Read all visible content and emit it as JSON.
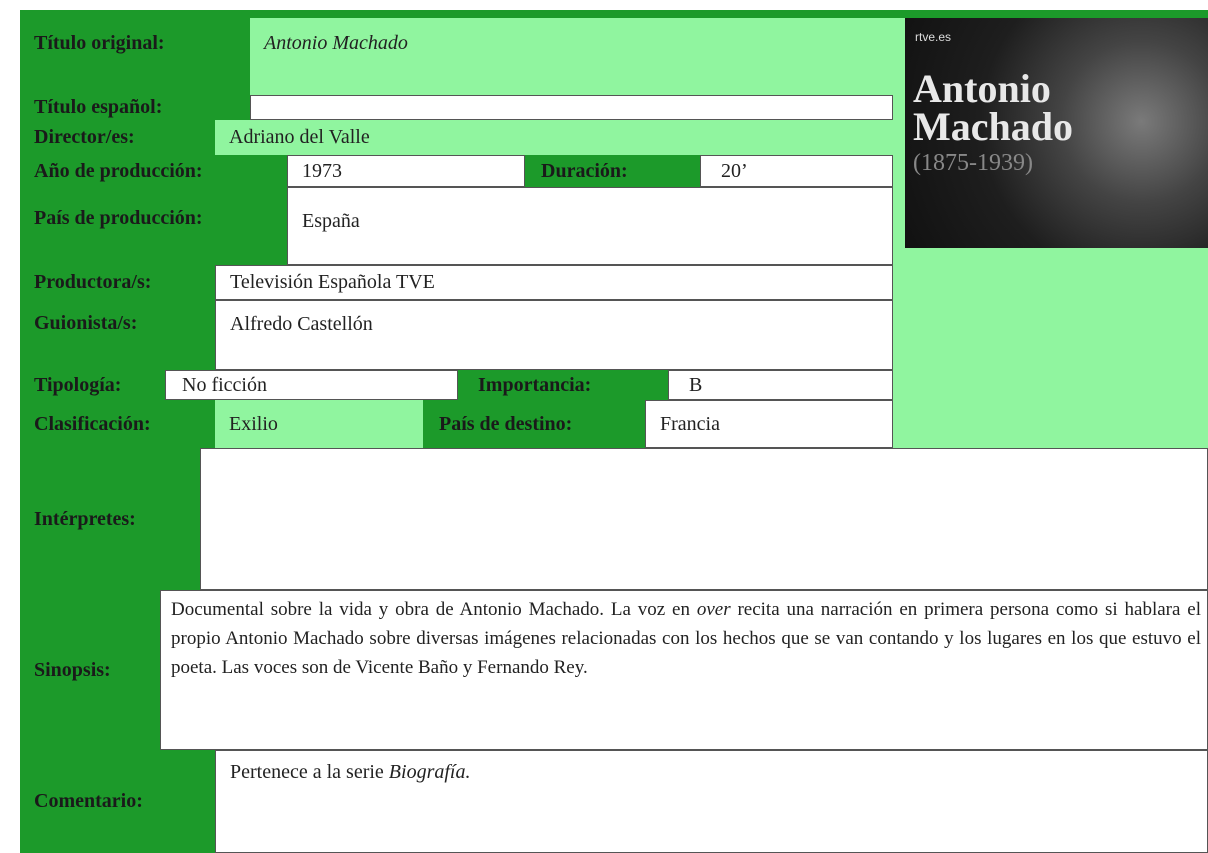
{
  "titulo_original": {
    "label": "Título original:",
    "value": "Antonio Machado"
  },
  "titulo_espanol": {
    "label": "Título español:"
  },
  "director": {
    "label": "Director/es:",
    "value": "Adriano del Valle"
  },
  "ano": {
    "label": "Año de producción:",
    "value": "1973"
  },
  "duracion": {
    "label": "Duración:",
    "value": "20’"
  },
  "pais_produccion": {
    "label": "País de producción:",
    "value": "España"
  },
  "productora": {
    "label": "Productora/s:",
    "value": "Televisión Española TVE"
  },
  "guionista": {
    "label": "Guionista/s:",
    "value": "Alfredo Castellón"
  },
  "tipologia": {
    "label": "Tipología:",
    "value": "No ficción"
  },
  "importancia": {
    "label": "Importancia:",
    "value": "B"
  },
  "clasificacion": {
    "label": "Clasificación:",
    "value": "Exilio"
  },
  "pais_destino": {
    "label": "País de destino:",
    "value": "Francia"
  },
  "interpretes": {
    "label": "Intérpretes:"
  },
  "sinopsis": {
    "label": "Sinopsis:",
    "text_1": "Documental sobre la vida y obra de Antonio Machado. La voz en",
    "italic": "over",
    "text_2": "recita una narración en primera persona como si hablara el propio Antonio Machado sobre diversas imágenes relacionadas con los hechos que se van contando y los lugares en los que estuvo el poeta. Las voces son de Vicente Baño y Fernando Rey."
  },
  "comentario": {
    "label": "Comentario:",
    "text": "Pertenece a la serie",
    "italic": "Biografía."
  },
  "photo": {
    "brand": "rtve.es",
    "name": "Antonio Machado",
    "dates": "(1875-1939)"
  }
}
